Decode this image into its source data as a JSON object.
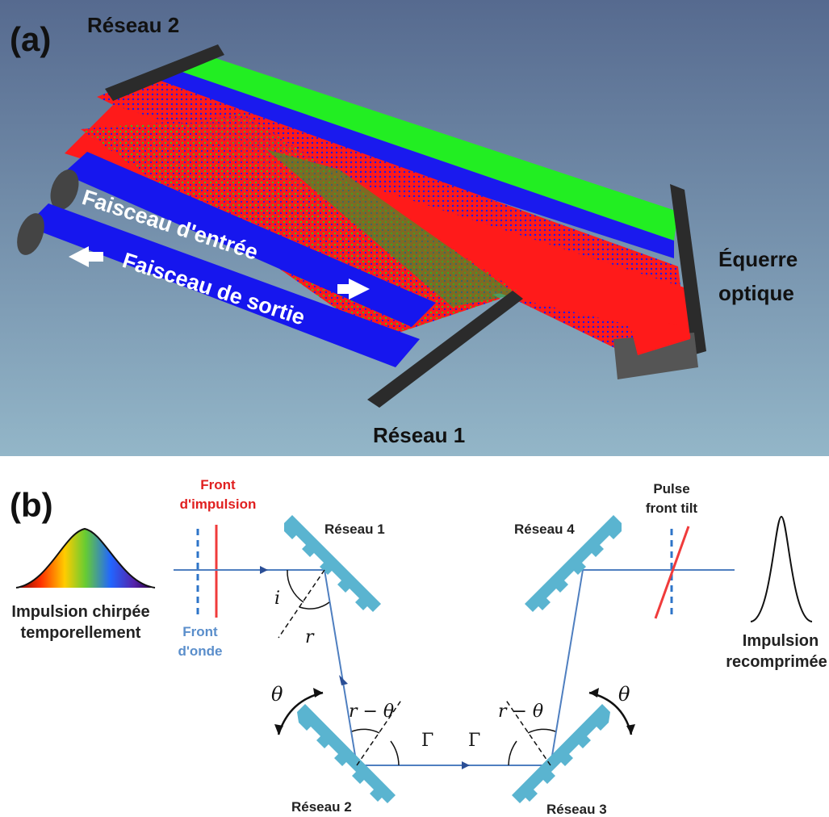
{
  "panel_a": {
    "label": "(a)",
    "grating2": "Réseau 2",
    "grating1": "Réseau 1",
    "roof_line1": "Équerre",
    "roof_line2": "optique",
    "beam_in": "Faisceau d'entrée",
    "beam_out": "Faisceau de sortie",
    "colors": {
      "bg_top": "#576a8e",
      "bg_bottom": "#8fb0c4",
      "red": "#ff1a1a",
      "green": "#22ee22",
      "blue": "#1a1aee",
      "grating": "#2b2b2b"
    }
  },
  "panel_b": {
    "label": "(b)",
    "pulse_front_line1": "Front",
    "pulse_front_line2": "d'impulsion",
    "wave_front_line1": "Front",
    "wave_front_line2": "d'onde",
    "chirped_line1": "Impulsion chirpée",
    "chirped_line2": "temporellement",
    "recomp_line1": "Impulsion",
    "recomp_line2": "recomprimée",
    "tilt_line1": "Pulse",
    "tilt_line2": "front tilt",
    "grating1": "Réseau 1",
    "grating2": "Réseau 2",
    "grating3": "Réseau 3",
    "grating4": "Réseau 4",
    "angle_i": "i",
    "angle_r": "r",
    "angle_theta_left": "θ",
    "angle_theta_right": "θ",
    "angle_r_theta_left": "r − θ",
    "angle_r_theta_right": "r − θ",
    "angle_gamma_left": "Γ",
    "angle_gamma_right": "Γ",
    "colors": {
      "grating": "#5ab4d0",
      "beam": "#4f7fc0",
      "pulse_front": "#f03b3b",
      "wave_front": "#2e74c8",
      "pulse_label": "#e02020",
      "wave_label": "#5a8ecb"
    }
  }
}
